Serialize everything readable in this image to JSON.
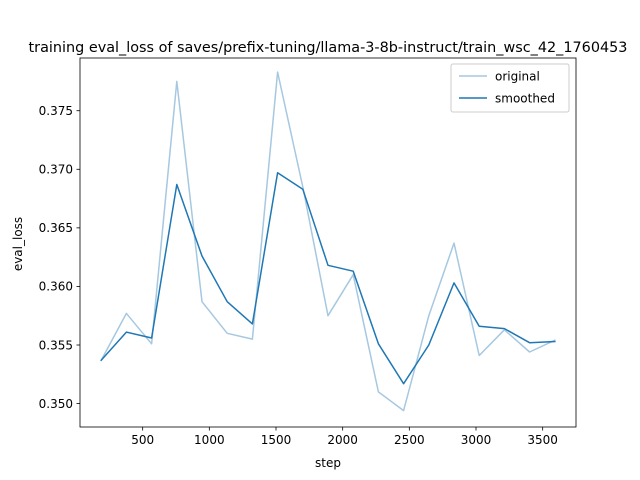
{
  "chart_data": {
    "type": "line",
    "title": "training eval_loss of saves/prefix-tuning/llama-3-8b-instruct/train_wsc_42_1760453",
    "xlabel": "step",
    "ylabel": "eval_loss",
    "xlim": [
      30,
      3750
    ],
    "ylim": [
      0.348,
      0.3795
    ],
    "xticks": [
      500,
      1000,
      1500,
      2000,
      2500,
      3000,
      3500
    ],
    "xtick_labels": [
      "500",
      "1000",
      "1500",
      "2000",
      "2500",
      "3000",
      "3500"
    ],
    "yticks": [
      0.35,
      0.355,
      0.36,
      0.365,
      0.37,
      0.375
    ],
    "ytick_labels": [
      "0.350",
      "0.355",
      "0.360",
      "0.365",
      "0.370",
      "0.375"
    ],
    "grid": false,
    "legend_position": "upper right",
    "series": [
      {
        "name": "original",
        "color": "#a6c8e0",
        "x": [
          189,
          378,
          567,
          756,
          945,
          1134,
          1323,
          1512,
          1701,
          1890,
          2079,
          2268,
          2457,
          2646,
          2835,
          3024,
          3213,
          3402,
          3591
        ],
        "y": [
          0.3537,
          0.3577,
          0.3551,
          0.3775,
          0.3587,
          0.356,
          0.3555,
          0.3783,
          0.3685,
          0.3575,
          0.361,
          0.351,
          0.3494,
          0.3575,
          0.3637,
          0.3541,
          0.3563,
          0.3544,
          0.3554
        ]
      },
      {
        "name": "smoothed",
        "color": "#1f77b4",
        "x": [
          189,
          378,
          567,
          756,
          945,
          1134,
          1323,
          1512,
          1701,
          1890,
          2079,
          2268,
          2457,
          2646,
          2835,
          3024,
          3213,
          3402,
          3591
        ],
        "y": [
          0.3537,
          0.3561,
          0.3556,
          0.3687,
          0.3626,
          0.3587,
          0.3568,
          0.3697,
          0.3683,
          0.3618,
          0.3613,
          0.3551,
          0.3517,
          0.355,
          0.3603,
          0.3566,
          0.3564,
          0.3552,
          0.3553
        ]
      }
    ]
  }
}
